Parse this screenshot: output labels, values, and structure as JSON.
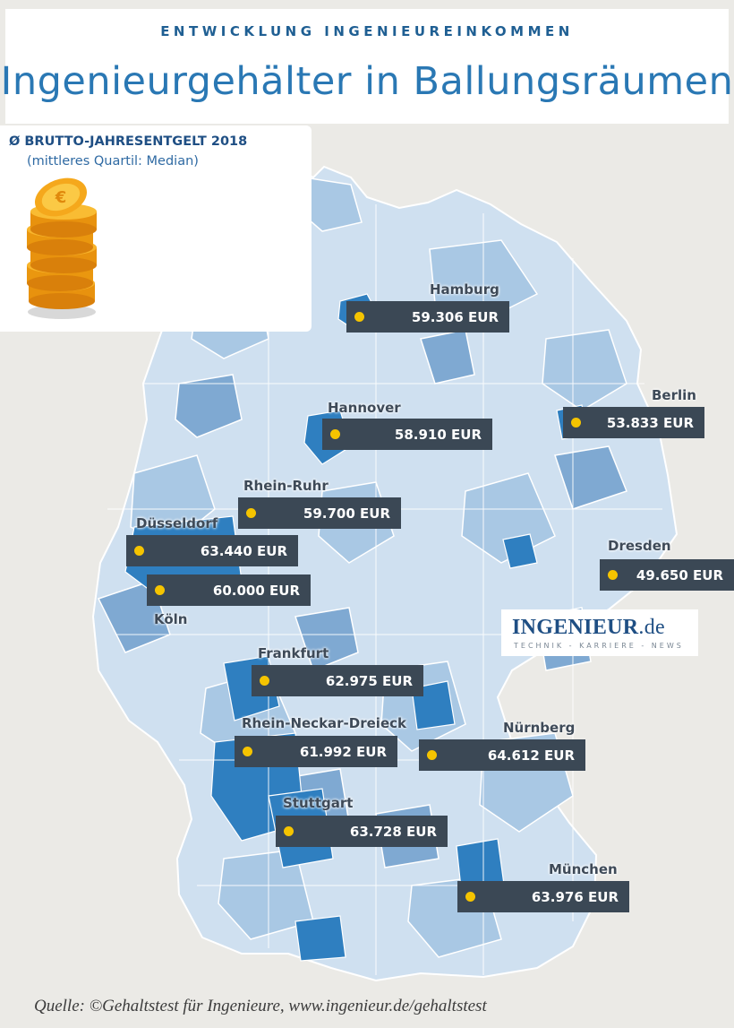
{
  "header": {
    "kicker": "ENTWICKLUNG INGENIEUREINKOMMEN",
    "title": "Ingenieurgehälter in Ballungsräumen"
  },
  "legend": {
    "title": "Ø BRUTTO-JAHRESENTGELT 2018",
    "subtitle": "(mittleres Quartil: Median)"
  },
  "colors": {
    "background": "#ebeae6",
    "region_light": "#d7e6f3",
    "region_mid": "#a9c8e4",
    "region_dark": "#7fa9d2",
    "region_highlight": "#2f7fc0",
    "label_box": "#3b4855",
    "marker": "#f5c400"
  },
  "regions": [
    {
      "city": "Hamburg",
      "salary": "59.306 EUR"
    },
    {
      "city": "Berlin",
      "salary": "53.833 EUR"
    },
    {
      "city": "Hannover",
      "salary": "58.910 EUR"
    },
    {
      "city": "Rhein-Ruhr",
      "salary": "59.700 EUR"
    },
    {
      "city": "Düsseldorf",
      "salary": "63.440 EUR"
    },
    {
      "city": "Köln",
      "salary": "60.000 EUR"
    },
    {
      "city": "Dresden",
      "salary": "49.650 EUR"
    },
    {
      "city": "Frankfurt",
      "salary": "62.975 EUR"
    },
    {
      "city": "Rhein-Neckar-Dreieck",
      "salary": "61.992 EUR"
    },
    {
      "city": "Nürnberg",
      "salary": "64.612 EUR"
    },
    {
      "city": "Stuttgart",
      "salary": "63.728 EUR"
    },
    {
      "city": "München",
      "salary": "63.976 EUR"
    }
  ],
  "logo": {
    "main": "INGENIEUR",
    "suffix": ".de",
    "tagline": "TECHNIK - KARRIERE - NEWS"
  },
  "source": "Quelle: ©Gehaltstest für Ingenieure, www.ingenieur.de/gehaltstest"
}
